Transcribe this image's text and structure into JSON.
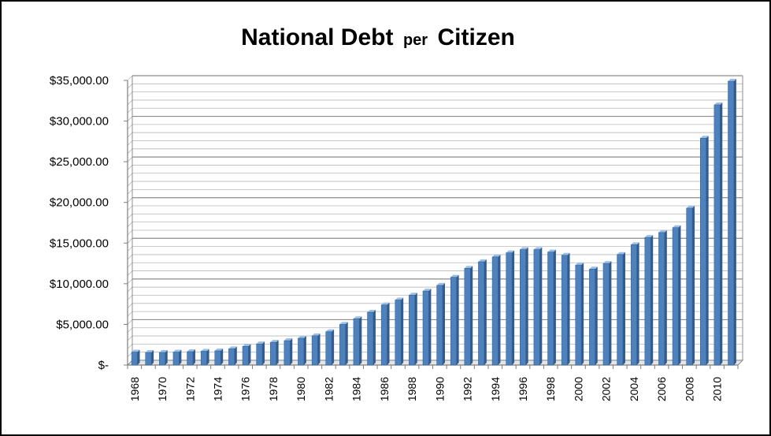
{
  "chart_data": {
    "type": "bar",
    "title": {
      "part1": "National Debt",
      "part2": "per",
      "part3": "Citizen"
    },
    "xlabel": "",
    "ylabel": "",
    "ylim": [
      0,
      35000
    ],
    "grid": true,
    "legend": "none",
    "bar_color": "#4f81bd",
    "bar_edge_color": "#2c5a8c",
    "y_ticks": [
      {
        "value": 0,
        "label": "$-"
      },
      {
        "value": 5000,
        "label": "$5,000.00"
      },
      {
        "value": 10000,
        "label": "$10,000.00"
      },
      {
        "value": 15000,
        "label": "$15,000.00"
      },
      {
        "value": 20000,
        "label": "$20,000.00"
      },
      {
        "value": 25000,
        "label": "$25,000.00"
      },
      {
        "value": 30000,
        "label": "$30,000.00"
      },
      {
        "value": 35000,
        "label": "$35,000.00"
      }
    ],
    "categories": [
      "1968",
      "1969",
      "1970",
      "1971",
      "1972",
      "1973",
      "1974",
      "1975",
      "1976",
      "1977",
      "1978",
      "1979",
      "1980",
      "1981",
      "1982",
      "1983",
      "1984",
      "1985",
      "1986",
      "1987",
      "1988",
      "1989",
      "1990",
      "1991",
      "1992",
      "1993",
      "1994",
      "1995",
      "1996",
      "1997",
      "1998",
      "1999",
      "2000",
      "2001",
      "2002",
      "2003",
      "2004",
      "2005",
      "2006",
      "2007",
      "2008",
      "2009",
      "2010",
      "2011"
    ],
    "x_tick_labels": [
      "1968",
      "1970",
      "1972",
      "1974",
      "1976",
      "1978",
      "1980",
      "1982",
      "1984",
      "1986",
      "1988",
      "1990",
      "1992",
      "1994",
      "1996",
      "1998",
      "2000",
      "2002",
      "2004",
      "2006",
      "2008",
      "2010"
    ],
    "values": [
      1600,
      1550,
      1550,
      1600,
      1650,
      1700,
      1750,
      2000,
      2300,
      2600,
      2800,
      3000,
      3300,
      3600,
      4100,
      5000,
      5700,
      6500,
      7400,
      8000,
      8600,
      9100,
      9800,
      10800,
      11900,
      12700,
      13300,
      13800,
      14200,
      14200,
      13900,
      13500,
      12300,
      11800,
      12500,
      13600,
      14800,
      15700,
      16300,
      16900,
      19300,
      27900,
      32000,
      34900
    ]
  }
}
